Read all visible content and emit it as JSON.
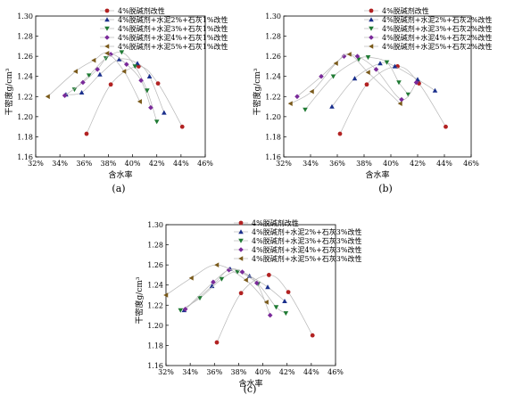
{
  "figure": {
    "captions": [
      "(a)",
      "(b)",
      "(c)"
    ]
  },
  "chart_data": [
    {
      "type": "scatter",
      "caption": "(a)",
      "xlabel": "含水率",
      "ylabel": "干密度g/cm³",
      "xlim": [
        32,
        46
      ],
      "ylim": [
        1.16,
        1.3
      ],
      "xticks": [
        "32%",
        "34%",
        "36%",
        "38%",
        "40%",
        "42%",
        "44%",
        "46%"
      ],
      "yticks": [
        "1.16",
        "1.18",
        "1.20",
        "1.22",
        "1.24",
        "1.26",
        "1.28",
        "1.30"
      ],
      "grid": false,
      "legend_position": "top-right",
      "series": [
        {
          "name": "4%脱碱剂改性",
          "marker": "circle",
          "color": "#b22222",
          "x": [
            36.2,
            38.2,
            40.5,
            42.1,
            44.1
          ],
          "y": [
            1.183,
            1.232,
            1.25,
            1.233,
            1.19
          ]
        },
        {
          "name": "4%脱碱剂+水泥2%+石灰1%改性",
          "marker": "triangle-up",
          "color": "#1a2f8c",
          "x": [
            34.5,
            35.8,
            37.3,
            38.9,
            40.4,
            41.4,
            42.6
          ],
          "y": [
            1.222,
            1.224,
            1.242,
            1.257,
            1.253,
            1.24,
            1.204
          ]
        },
        {
          "name": "4%脱碱剂+水泥3%+石灰1%改性",
          "marker": "triangle-down",
          "color": "#1f7a33",
          "x": [
            35.2,
            36.4,
            37.8,
            39.1,
            40.2,
            41.2,
            42.0
          ],
          "y": [
            1.227,
            1.241,
            1.258,
            1.264,
            1.25,
            1.226,
            1.195
          ]
        },
        {
          "name": "4%脱碱剂+水泥4%+石灰1%改性",
          "marker": "diamond",
          "color": "#7a2a9a",
          "x": [
            34.4,
            35.9,
            37.1,
            38.2,
            39.5,
            40.7,
            41.5
          ],
          "y": [
            1.221,
            1.234,
            1.247,
            1.262,
            1.252,
            1.236,
            1.209
          ]
        },
        {
          "name": "4%脱碱剂+水泥5%+石灰1%改性",
          "marker": "triangle-left",
          "color": "#7a5a1a",
          "x": [
            33.0,
            35.3,
            36.8,
            37.9,
            39.3,
            40.6
          ],
          "y": [
            1.22,
            1.245,
            1.256,
            1.263,
            1.245,
            1.215
          ]
        }
      ]
    },
    {
      "type": "scatter",
      "caption": "(b)",
      "xlabel": "含水率",
      "ylabel": "干密度g/cm³",
      "xlim": [
        32,
        46
      ],
      "ylim": [
        1.16,
        1.3
      ],
      "xticks": [
        "32%",
        "34%",
        "36%",
        "38%",
        "40%",
        "42%",
        "44%",
        "46%"
      ],
      "yticks": [
        "1.16",
        "1.18",
        "1.20",
        "1.22",
        "1.24",
        "1.26",
        "1.28",
        "1.30"
      ],
      "grid": false,
      "legend_position": "top-right",
      "series": [
        {
          "name": "4%脱碱剂改性",
          "marker": "circle",
          "color": "#b22222",
          "x": [
            36.2,
            38.2,
            40.5,
            42.1,
            44.1
          ],
          "y": [
            1.183,
            1.232,
            1.25,
            1.233,
            1.19
          ]
        },
        {
          "name": "4%脱碱剂+水泥2%+石灰2%改性",
          "marker": "triangle-up",
          "color": "#1a2f8c",
          "x": [
            35.6,
            37.3,
            39.2,
            40.3,
            42.0,
            43.3
          ],
          "y": [
            1.21,
            1.238,
            1.253,
            1.25,
            1.237,
            1.226
          ]
        },
        {
          "name": "4%脱碱剂+水泥3%+石灰2%改性",
          "marker": "triangle-down",
          "color": "#1f7a33",
          "x": [
            33.6,
            35.7,
            37.6,
            38.3,
            39.7,
            40.6,
            41.3
          ],
          "y": [
            1.207,
            1.24,
            1.257,
            1.259,
            1.254,
            1.234,
            1.222
          ]
        },
        {
          "name": "4%脱碱剂+水泥4%+石灰2%改性",
          "marker": "diamond",
          "color": "#7a2a9a",
          "x": [
            33.0,
            34.8,
            36.5,
            37.5,
            38.9,
            40.8,
            41.9
          ],
          "y": [
            1.22,
            1.24,
            1.26,
            1.26,
            1.247,
            1.217,
            1.234
          ]
        },
        {
          "name": "4%脱碱剂+水泥5%+石灰2%改性",
          "marker": "triangle-left",
          "color": "#7a5a1a",
          "x": [
            32.5,
            34.1,
            35.9,
            36.9,
            38.3,
            40.7
          ],
          "y": [
            1.213,
            1.225,
            1.253,
            1.262,
            1.244,
            1.213
          ]
        }
      ]
    },
    {
      "type": "scatter",
      "caption": "(c)",
      "xlabel": "含水率",
      "ylabel": "干密度g/cm³",
      "xlim": [
        32,
        46
      ],
      "ylim": [
        1.16,
        1.3
      ],
      "xticks": [
        "32%",
        "34%",
        "36%",
        "38%",
        "40%",
        "42%",
        "44%",
        "46%"
      ],
      "yticks": [
        "1.16",
        "1.18",
        "1.20",
        "1.22",
        "1.24",
        "1.26",
        "1.28",
        "1.30"
      ],
      "grid": false,
      "legend_position": "top-right",
      "series": [
        {
          "name": "4%脱碱剂改性",
          "marker": "circle",
          "color": "#b22222",
          "x": [
            36.2,
            38.2,
            40.5,
            42.1,
            44.1
          ],
          "y": [
            1.183,
            1.232,
            1.25,
            1.233,
            1.19
          ]
        },
        {
          "name": "4%脱碱剂+水泥2%+石灰3%改性",
          "marker": "triangle-up",
          "color": "#1a2f8c",
          "x": [
            33.5,
            35.8,
            37.3,
            38.9,
            40.4,
            41.8
          ],
          "y": [
            1.215,
            1.239,
            1.256,
            1.249,
            1.238,
            1.224
          ]
        },
        {
          "name": "4%脱碱剂+水泥3%+石灰3%改性",
          "marker": "triangle-down",
          "color": "#1f7a33",
          "x": [
            33.2,
            34.8,
            36.6,
            37.9,
            39.6,
            41.1,
            41.9
          ],
          "y": [
            1.215,
            1.227,
            1.246,
            1.253,
            1.241,
            1.218,
            1.212
          ]
        },
        {
          "name": "4%脱碱剂+水泥4%+石灰3%改性",
          "marker": "diamond",
          "color": "#7a2a9a",
          "x": [
            33.6,
            35.9,
            37.2,
            38.3,
            39.5,
            40.6
          ],
          "y": [
            1.216,
            1.243,
            1.255,
            1.253,
            1.242,
            1.21
          ]
        },
        {
          "name": "4%脱碱剂+水泥5%+石灰3%改性",
          "marker": "triangle-left",
          "color": "#7a5a1a",
          "x": [
            32.0,
            34.1,
            36.2,
            38.6,
            40.3
          ],
          "y": [
            1.23,
            1.247,
            1.26,
            1.245,
            1.223
          ]
        }
      ]
    }
  ]
}
